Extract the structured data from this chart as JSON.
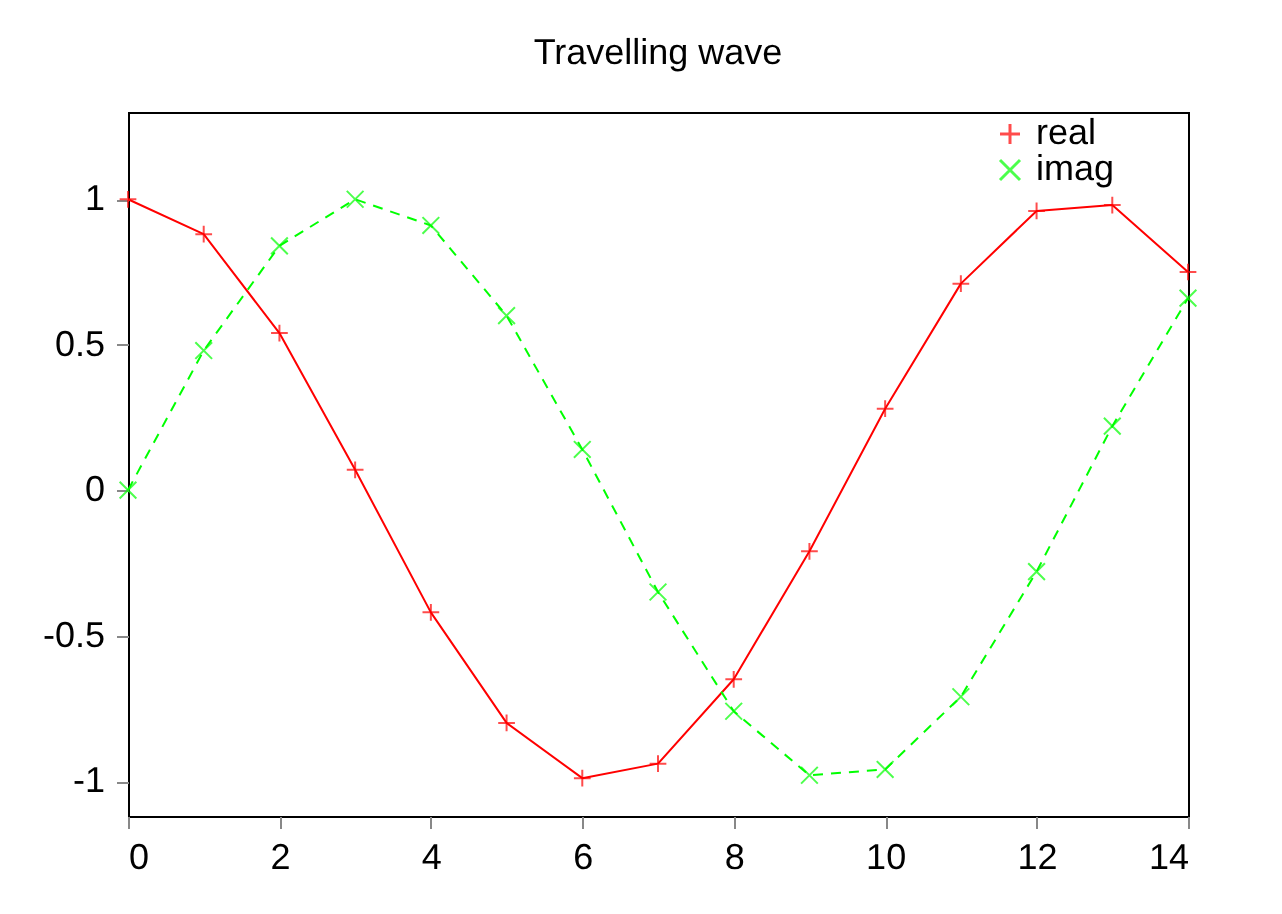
{
  "chart_data": {
    "type": "line",
    "title": "Travelling wave",
    "x": [
      0,
      1,
      2,
      3,
      4,
      5,
      6,
      7,
      8,
      9,
      10,
      11,
      12,
      13,
      14
    ],
    "series": [
      {
        "name": "real",
        "color": "#ff0000",
        "marker": "cross",
        "line_style": "solid",
        "values": [
          1.0,
          0.88,
          0.54,
          0.07,
          -0.42,
          -0.8,
          -0.99,
          -0.94,
          -0.65,
          -0.21,
          0.28,
          0.71,
          0.96,
          0.98,
          0.75
        ]
      },
      {
        "name": "imag",
        "color": "#00ff00",
        "marker": "x",
        "line_style": "dashed",
        "values": [
          0.0,
          0.48,
          0.84,
          1.0,
          0.91,
          0.6,
          0.14,
          -0.35,
          -0.76,
          -0.98,
          -0.96,
          -0.71,
          -0.28,
          0.22,
          0.66
        ]
      }
    ],
    "xlim": [
      0,
      14
    ],
    "xticks": [
      0,
      2,
      4,
      6,
      8,
      10,
      12,
      14
    ],
    "ylim": [
      -1.12,
      1.3
    ],
    "yticks": [
      -1,
      -0.5,
      0,
      0.5,
      1
    ],
    "grid": false,
    "legend": "top right"
  }
}
